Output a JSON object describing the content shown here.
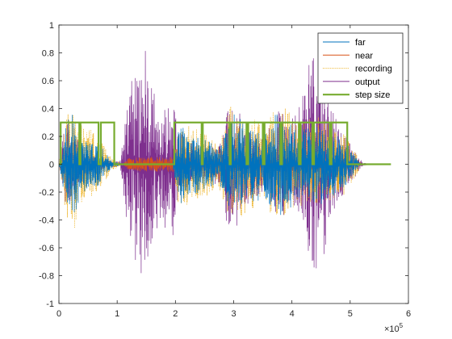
{
  "chart_data": {
    "type": "line",
    "title": "",
    "xlabel": "",
    "ylabel": "",
    "xlim": [
      0,
      6
    ],
    "ylim": [
      -1,
      1
    ],
    "x_exponent_label": {
      "base": "×10",
      "exponent": "5"
    },
    "x_ticks": [
      {
        "value": 0,
        "label": "0"
      },
      {
        "value": 1,
        "label": "1"
      },
      {
        "value": 2,
        "label": "2"
      },
      {
        "value": 3,
        "label": "3"
      },
      {
        "value": 4,
        "label": "4"
      },
      {
        "value": 5,
        "label": "5"
      },
      {
        "value": 6,
        "label": "6"
      }
    ],
    "y_ticks": [
      {
        "value": 1,
        "label": "1"
      },
      {
        "value": 0.8,
        "label": "0.8"
      },
      {
        "value": 0.6,
        "label": "0.6"
      },
      {
        "value": 0.4,
        "label": "0.4"
      },
      {
        "value": 0.2,
        "label": "0.2"
      },
      {
        "value": 0,
        "label": "0"
      },
      {
        "value": -0.2,
        "label": "-0.2"
      },
      {
        "value": -0.4,
        "label": "-0.4"
      },
      {
        "value": -0.6,
        "label": "-0.6"
      },
      {
        "value": -0.8,
        "label": "-0.8"
      },
      {
        "value": -1,
        "label": "-1"
      }
    ],
    "grid": false,
    "legend_position": "top-right",
    "series": [
      {
        "name": "far",
        "color": "#0072BD",
        "style": "solid",
        "envelope": [
          [
            0,
            0
          ],
          [
            0.15,
            0.38
          ],
          [
            0.25,
            0.42
          ],
          [
            0.35,
            0.25
          ],
          [
            0.5,
            0.2
          ],
          [
            0.7,
            0.15
          ],
          [
            0.9,
            0.03
          ],
          [
            1.1,
            0
          ],
          [
            1.95,
            0
          ],
          [
            2.05,
            0.3
          ],
          [
            2.2,
            0.25
          ],
          [
            2.5,
            0.2
          ],
          [
            2.75,
            0.12
          ],
          [
            2.95,
            0.38
          ],
          [
            3.2,
            0.3
          ],
          [
            3.5,
            0.25
          ],
          [
            3.8,
            0.4
          ],
          [
            4.1,
            0.25
          ],
          [
            4.5,
            0.3
          ],
          [
            4.9,
            0.18
          ],
          [
            5.1,
            0.05
          ],
          [
            5.2,
            0
          ]
        ]
      },
      {
        "name": "near",
        "color": "#D95319",
        "style": "solid",
        "envelope": [
          [
            0,
            0
          ],
          [
            1.1,
            0
          ],
          [
            1.2,
            0.05
          ],
          [
            1.5,
            0.06
          ],
          [
            1.8,
            0.05
          ],
          [
            2,
            0.06
          ],
          [
            2.5,
            0.05
          ],
          [
            3,
            0.06
          ],
          [
            3.5,
            0.05
          ],
          [
            4,
            0.06
          ],
          [
            4.5,
            0.05
          ],
          [
            5,
            0.04
          ],
          [
            5.2,
            0
          ]
        ]
      },
      {
        "name": "recording",
        "color": "#EDB120",
        "style": "dotted",
        "envelope": [
          [
            0,
            0
          ],
          [
            0.15,
            0.45
          ],
          [
            0.25,
            0.52
          ],
          [
            0.35,
            0.3
          ],
          [
            0.5,
            0.28
          ],
          [
            0.7,
            0.18
          ],
          [
            0.9,
            0.05
          ],
          [
            1.1,
            0
          ],
          [
            1.95,
            0
          ],
          [
            2.05,
            0.34
          ],
          [
            2.2,
            0.3
          ],
          [
            2.5,
            0.25
          ],
          [
            2.75,
            0.18
          ],
          [
            2.95,
            0.42
          ],
          [
            3.2,
            0.36
          ],
          [
            3.5,
            0.3
          ],
          [
            3.8,
            0.45
          ],
          [
            4.1,
            0.3
          ],
          [
            4.5,
            0.35
          ],
          [
            4.9,
            0.22
          ],
          [
            5.1,
            0.08
          ],
          [
            5.2,
            0
          ]
        ]
      },
      {
        "name": "output",
        "color": "#7E2F8E",
        "style": "solid",
        "envelope": [
          [
            0,
            0
          ],
          [
            0.1,
            0.3
          ],
          [
            0.2,
            0.28
          ],
          [
            0.3,
            0.2
          ],
          [
            0.5,
            0.08
          ],
          [
            0.8,
            0.03
          ],
          [
            1.05,
            0.02
          ],
          [
            1.15,
            0.4
          ],
          [
            1.25,
            0.6
          ],
          [
            1.45,
            0.94
          ],
          [
            1.55,
            0.7
          ],
          [
            1.7,
            0.5
          ],
          [
            1.85,
            0.5
          ],
          [
            1.95,
            0.6
          ],
          [
            2.05,
            0.25
          ],
          [
            2.3,
            0.15
          ],
          [
            2.6,
            0.12
          ],
          [
            2.8,
            0.18
          ],
          [
            2.9,
            0.58
          ],
          [
            3.05,
            0.45
          ],
          [
            3.2,
            0.3
          ],
          [
            3.5,
            0.2
          ],
          [
            3.8,
            0.4
          ],
          [
            4.0,
            0.35
          ],
          [
            4.15,
            0.45
          ],
          [
            4.3,
            0.84
          ],
          [
            4.45,
            0.94
          ],
          [
            4.6,
            0.6
          ],
          [
            4.8,
            0.3
          ],
          [
            5.0,
            0.15
          ],
          [
            5.2,
            0.02
          ],
          [
            5.3,
            0
          ]
        ]
      },
      {
        "name": "step size",
        "color": "#77AC30",
        "style": "solid",
        "base_level": 0,
        "high_level": 0.3,
        "high_intervals": [
          [
            0.03,
            0.35
          ],
          [
            0.37,
            0.68
          ],
          [
            0.72,
            0.95
          ],
          [
            1.98,
            2.45
          ],
          [
            2.47,
            2.93
          ],
          [
            2.95,
            3.22
          ],
          [
            3.25,
            3.5
          ],
          [
            3.53,
            3.8
          ],
          [
            3.83,
            4.12
          ],
          [
            4.15,
            4.35
          ],
          [
            4.38,
            4.65
          ],
          [
            4.68,
            4.95
          ]
        ],
        "x_end": 5.7
      }
    ]
  }
}
